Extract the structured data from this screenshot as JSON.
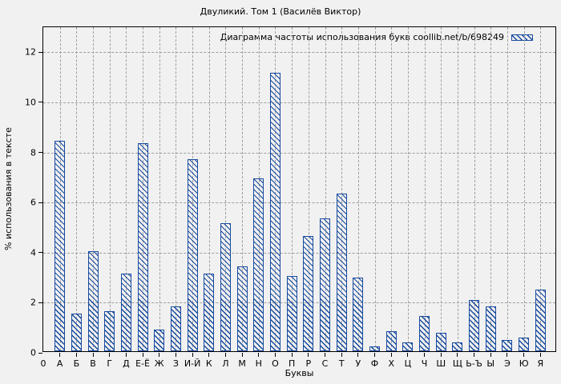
{
  "title": "Двуликий. Том 1 (Василёв Виктор)",
  "legend": {
    "label": "Диаграмма частоты использования букв coollib.net/b/698249"
  },
  "axes": {
    "x_label": "Буквы",
    "y_label": "% использования в тексте",
    "y_ticks": [
      0,
      2,
      4,
      6,
      8,
      10,
      12
    ],
    "origin_label": "0"
  },
  "colors": {
    "bar": "#164a9e",
    "background": "#f1f1f1",
    "grid": "#9f9f9f",
    "text": "#000000"
  },
  "chart_data": {
    "type": "bar",
    "title": "Двуликий. Том 1 (Василёв Виктор)",
    "xlabel": "Буквы",
    "ylabel": "% использования в тексте",
    "legend": "Диаграмма частоты использования букв coollib.net/b/698249",
    "legend_position": "top-right",
    "grid": true,
    "hatch": "backslash-diagonal",
    "ylim": [
      0,
      13
    ],
    "y_ticks": [
      0,
      2,
      4,
      6,
      8,
      10,
      12
    ],
    "categories": [
      "А",
      "Б",
      "В",
      "Г",
      "Д",
      "Е-Ё",
      "Ж",
      "З",
      "И-Й",
      "К",
      "Л",
      "М",
      "Н",
      "О",
      "П",
      "Р",
      "С",
      "Т",
      "У",
      "Ф",
      "Х",
      "Ц",
      "Ч",
      "Ш",
      "Щ",
      "Ь-Ъ",
      "Ы",
      "Э",
      "Ю",
      "Я"
    ],
    "values": [
      8.4,
      1.5,
      4.0,
      1.6,
      3.1,
      8.3,
      0.85,
      1.8,
      7.65,
      3.1,
      5.1,
      3.4,
      6.9,
      11.1,
      3.0,
      4.6,
      5.3,
      6.3,
      2.95,
      0.2,
      0.8,
      0.35,
      1.4,
      0.75,
      0.35,
      2.05,
      1.8,
      0.45,
      0.55,
      2.45
    ]
  }
}
